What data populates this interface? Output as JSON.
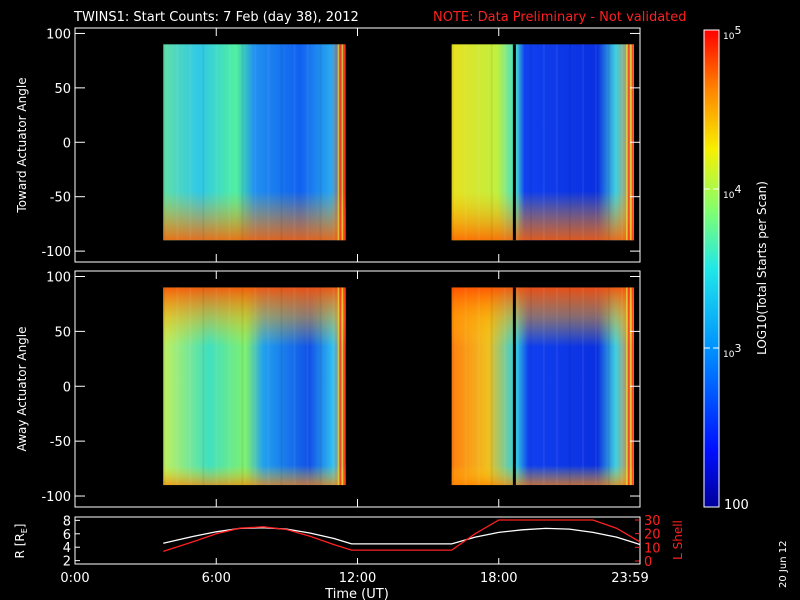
{
  "title": {
    "main": "TWINS1: Start Counts:  7 Feb (day  38), 2012",
    "note": "NOTE: Data Preliminary - Not validated"
  },
  "panels": {
    "top_ylabel": "Toward Actuator Angle",
    "bottom_ylabel": "Away Actuator Angle",
    "ytick_labels": [
      "100",
      "50",
      "0",
      "-50",
      "-100"
    ]
  },
  "orbit": {
    "ylabel_left": "R [R",
    "ylabel_left_sub": "E",
    "ylabel_left_close": "]",
    "ylabel_right": "L Shell",
    "left_ticks": [
      "8",
      "6",
      "4",
      "2"
    ],
    "right_ticks": [
      "30",
      "20",
      "10",
      "0"
    ]
  },
  "xaxis": {
    "ticks": [
      "0:00",
      "6:00",
      "12:00",
      "18:00",
      "23:59"
    ],
    "label": "Time (UT)"
  },
  "colorbar": {
    "label": "LOG10(Total Starts per Scan)",
    "tick_labels": [
      "10",
      "10",
      "10"
    ],
    "tick_exps": [
      "5",
      "4",
      "3"
    ],
    "bottom_label": "100"
  },
  "date_stamp": "20 Jun 12",
  "colors": {
    "title_note": "#ff2020",
    "l_shell": "#ff2020",
    "r_trace": "#ffffff"
  },
  "chart_data": [
    {
      "type": "heatmap",
      "panel": "toward",
      "ylabel": "Toward Actuator Angle",
      "ylim": [
        -110,
        105
      ],
      "xlim_hours": [
        0,
        24
      ],
      "data_blocks_hours": [
        [
          3.75,
          11.75
        ],
        [
          16.0,
          24.0
        ]
      ],
      "colorscale_log10": [
        2,
        5
      ]
    },
    {
      "type": "heatmap",
      "panel": "away",
      "ylabel": "Away Actuator Angle",
      "ylim": [
        -110,
        105
      ],
      "xlim_hours": [
        0,
        24
      ],
      "data_blocks_hours": [
        [
          3.75,
          11.75
        ],
        [
          16.0,
          24.0
        ]
      ],
      "colorscale_log10": [
        2,
        5
      ]
    },
    {
      "type": "line",
      "panel": "orbit",
      "x_hours": [
        3.75,
        5,
        6,
        7,
        8,
        9,
        10,
        11,
        11.75,
        14,
        16,
        17,
        18,
        19,
        20,
        21,
        22,
        23,
        24
      ],
      "series": [
        {
          "name": "R",
          "axis": "left",
          "values": [
            4.6,
            5.6,
            6.3,
            6.8,
            6.9,
            6.7,
            6.1,
            5.3,
            4.5,
            4.5,
            4.5,
            5.5,
            6.2,
            6.6,
            6.8,
            6.7,
            6.2,
            5.5,
            4.4
          ]
        },
        {
          "name": "L Shell",
          "axis": "right",
          "values": [
            7,
            14,
            20,
            24,
            25,
            23,
            18,
            12,
            8,
            8,
            8,
            20,
            30,
            30,
            30,
            30,
            30,
            24,
            14
          ]
        }
      ],
      "ylim_left": [
        1.5,
        8.5
      ],
      "ylim_right": [
        0,
        30
      ]
    }
  ]
}
